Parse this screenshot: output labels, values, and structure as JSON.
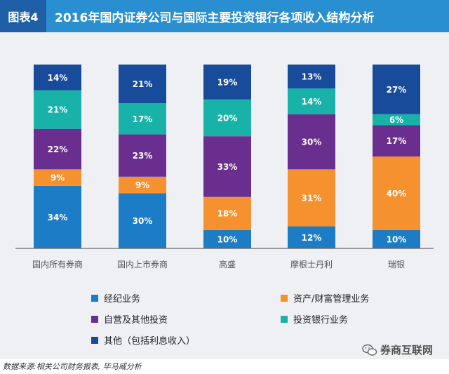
{
  "header": {
    "figure_label": "图表4",
    "title": "2016年国内证券公司与国际主要投资银行各项收入结构分析"
  },
  "colors": {
    "brokerage": "#1c7dc6",
    "asset_mgmt": "#f5922f",
    "proprietary": "#6a2f8e",
    "ib": "#19b2a8",
    "other": "#184c9a"
  },
  "chart_data": {
    "type": "bar",
    "stacked": true,
    "categories": [
      "国内所有券商",
      "国内上市券商",
      "高盛",
      "摩根士丹利",
      "瑞银"
    ],
    "series": [
      {
        "key": "brokerage",
        "name": "经纪业务",
        "values": [
          34,
          30,
          10,
          12,
          10
        ]
      },
      {
        "key": "asset_mgmt",
        "name": "资产/财富管理业务",
        "values": [
          9,
          9,
          18,
          31,
          40
        ]
      },
      {
        "key": "proprietary",
        "name": "自营及其他投资",
        "values": [
          22,
          23,
          33,
          30,
          17
        ]
      },
      {
        "key": "ib",
        "name": "投资银行业务",
        "values": [
          21,
          17,
          20,
          14,
          6
        ]
      },
      {
        "key": "other",
        "name": "其他（包括利息收入）",
        "values": [
          14,
          21,
          19,
          13,
          27
        ]
      }
    ],
    "value_suffix": "%",
    "legend_position": "bottom",
    "grid": false
  },
  "legend": {
    "items": [
      {
        "label": "经纪业务",
        "color": "#1c7dc6"
      },
      {
        "label": "资产/财富管理业务",
        "color": "#f5922f"
      },
      {
        "label": "自营及其他投资",
        "color": "#6a2f8e"
      },
      {
        "label": "投资银行业务",
        "color": "#19b2a8"
      },
      {
        "label": "其他（包括利息收入）",
        "color": "#184c9a"
      }
    ]
  },
  "footer": {
    "source": "数据来源:相关公司财务报表, 毕马威分析",
    "watermark": "券商互联网"
  }
}
